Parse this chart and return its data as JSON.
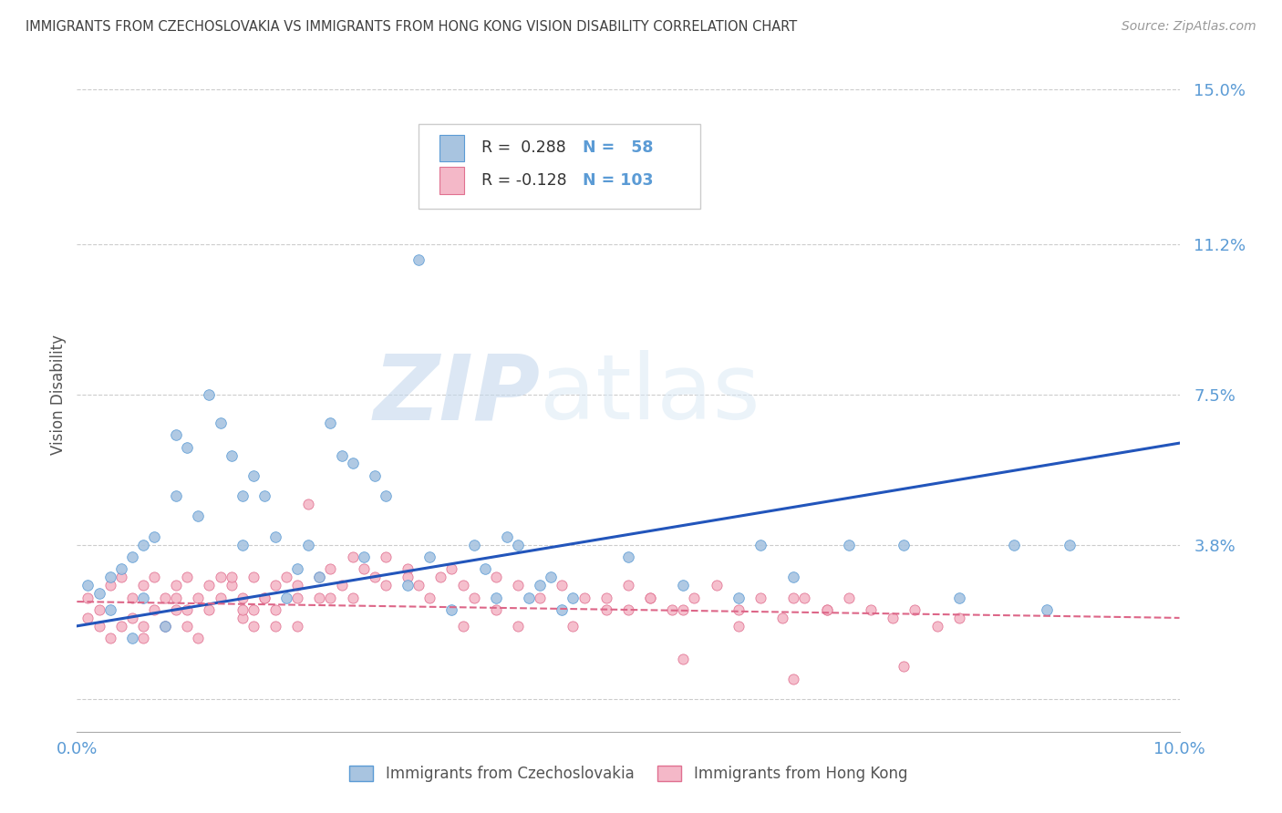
{
  "title": "IMMIGRANTS FROM CZECHOSLOVAKIA VS IMMIGRANTS FROM HONG KONG VISION DISABILITY CORRELATION CHART",
  "source": "Source: ZipAtlas.com",
  "ylabel": "Vision Disability",
  "yticks": [
    0.0,
    0.038,
    0.075,
    0.112,
    0.15
  ],
  "ytick_labels": [
    "",
    "3.8%",
    "7.5%",
    "11.2%",
    "15.0%"
  ],
  "xmin": 0.0,
  "xmax": 0.1,
  "ymin": -0.008,
  "ymax": 0.158,
  "series1_name": "Immigrants from Czechoslovakia",
  "series1_color": "#a8c4e0",
  "series1_edge_color": "#5b9bd5",
  "series2_name": "Immigrants from Hong Kong",
  "series2_color": "#f4b8c8",
  "series2_edge_color": "#e07090",
  "trend1_color": "#2255bb",
  "trend2_color": "#dd6688",
  "watermark": "ZIPatlas",
  "background_color": "#ffffff",
  "grid_color": "#cccccc",
  "axis_label_color": "#5b9bd5",
  "title_color": "#404040",
  "legend_box_color": "#dddddd",
  "legend_R1_color": "#333333",
  "legend_N1_color": "#5b9bd5",
  "legend_R2_color": "#333333",
  "legend_N2_color": "#5b9bd5",
  "blue_trend_y0": 0.018,
  "blue_trend_y1": 0.063,
  "pink_trend_y0": 0.024,
  "pink_trend_y1": 0.02,
  "scatter1_x": [
    0.001,
    0.002,
    0.003,
    0.003,
    0.004,
    0.005,
    0.005,
    0.006,
    0.006,
    0.007,
    0.008,
    0.009,
    0.009,
    0.01,
    0.011,
    0.012,
    0.013,
    0.014,
    0.015,
    0.015,
    0.016,
    0.017,
    0.018,
    0.019,
    0.02,
    0.021,
    0.022,
    0.023,
    0.024,
    0.025,
    0.026,
    0.027,
    0.028,
    0.03,
    0.031,
    0.032,
    0.034,
    0.036,
    0.037,
    0.038,
    0.039,
    0.04,
    0.041,
    0.042,
    0.043,
    0.044,
    0.045,
    0.05,
    0.055,
    0.06,
    0.062,
    0.065,
    0.07,
    0.075,
    0.08,
    0.085,
    0.088,
    0.09
  ],
  "scatter1_y": [
    0.028,
    0.026,
    0.03,
    0.022,
    0.032,
    0.035,
    0.015,
    0.038,
    0.025,
    0.04,
    0.018,
    0.065,
    0.05,
    0.062,
    0.045,
    0.075,
    0.068,
    0.06,
    0.05,
    0.038,
    0.055,
    0.05,
    0.04,
    0.025,
    0.032,
    0.038,
    0.03,
    0.068,
    0.06,
    0.058,
    0.035,
    0.055,
    0.05,
    0.028,
    0.108,
    0.035,
    0.022,
    0.038,
    0.032,
    0.025,
    0.04,
    0.038,
    0.025,
    0.028,
    0.03,
    0.022,
    0.025,
    0.035,
    0.028,
    0.025,
    0.038,
    0.03,
    0.038,
    0.038,
    0.025,
    0.038,
    0.022,
    0.038
  ],
  "scatter2_x": [
    0.001,
    0.001,
    0.002,
    0.002,
    0.003,
    0.003,
    0.004,
    0.004,
    0.005,
    0.005,
    0.006,
    0.006,
    0.007,
    0.007,
    0.008,
    0.008,
    0.009,
    0.009,
    0.01,
    0.01,
    0.011,
    0.011,
    0.012,
    0.012,
    0.013,
    0.013,
    0.014,
    0.015,
    0.015,
    0.016,
    0.016,
    0.017,
    0.018,
    0.018,
    0.019,
    0.02,
    0.02,
    0.021,
    0.022,
    0.023,
    0.023,
    0.024,
    0.025,
    0.026,
    0.027,
    0.028,
    0.03,
    0.031,
    0.032,
    0.033,
    0.034,
    0.035,
    0.036,
    0.038,
    0.04,
    0.042,
    0.044,
    0.046,
    0.048,
    0.05,
    0.052,
    0.054,
    0.056,
    0.058,
    0.06,
    0.062,
    0.064,
    0.066,
    0.068,
    0.07,
    0.072,
    0.074,
    0.076,
    0.078,
    0.08,
    0.052,
    0.055,
    0.06,
    0.065,
    0.068,
    0.045,
    0.048,
    0.05,
    0.035,
    0.038,
    0.04,
    0.025,
    0.028,
    0.03,
    0.018,
    0.02,
    0.022,
    0.014,
    0.015,
    0.016,
    0.017,
    0.008,
    0.009,
    0.01,
    0.006,
    0.055,
    0.065,
    0.075
  ],
  "scatter2_y": [
    0.025,
    0.02,
    0.022,
    0.018,
    0.028,
    0.015,
    0.03,
    0.018,
    0.025,
    0.02,
    0.028,
    0.015,
    0.03,
    0.022,
    0.025,
    0.018,
    0.028,
    0.022,
    0.03,
    0.018,
    0.025,
    0.015,
    0.028,
    0.022,
    0.025,
    0.03,
    0.028,
    0.025,
    0.02,
    0.03,
    0.022,
    0.025,
    0.028,
    0.018,
    0.03,
    0.028,
    0.025,
    0.048,
    0.03,
    0.025,
    0.032,
    0.028,
    0.035,
    0.032,
    0.03,
    0.035,
    0.032,
    0.028,
    0.025,
    0.03,
    0.032,
    0.028,
    0.025,
    0.03,
    0.028,
    0.025,
    0.028,
    0.025,
    0.022,
    0.028,
    0.025,
    0.022,
    0.025,
    0.028,
    0.022,
    0.025,
    0.02,
    0.025,
    0.022,
    0.025,
    0.022,
    0.02,
    0.022,
    0.018,
    0.02,
    0.025,
    0.022,
    0.018,
    0.025,
    0.022,
    0.018,
    0.025,
    0.022,
    0.018,
    0.022,
    0.018,
    0.025,
    0.028,
    0.03,
    0.022,
    0.018,
    0.025,
    0.03,
    0.022,
    0.018,
    0.025,
    0.018,
    0.025,
    0.022,
    0.018,
    0.01,
    0.005,
    0.008
  ]
}
